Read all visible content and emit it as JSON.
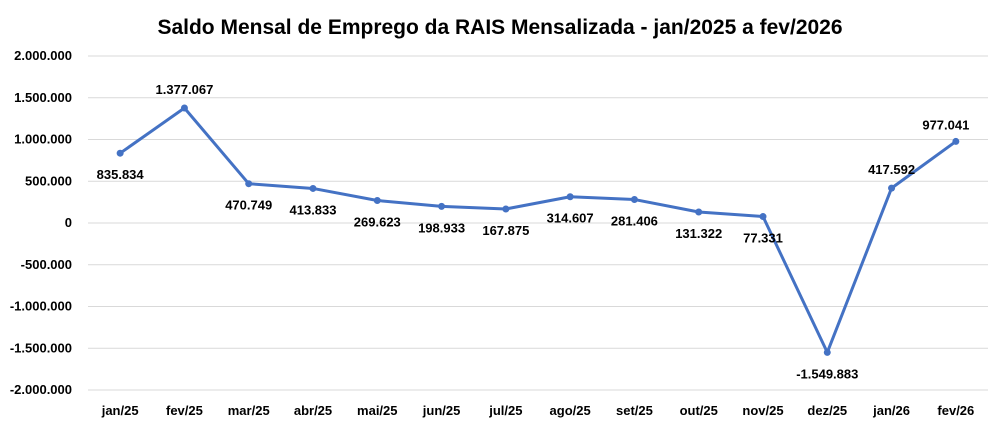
{
  "chart_data": {
    "type": "line",
    "title": "Saldo Mensal de Emprego da RAIS Mensalizada -  jan/2025 a fev/2026",
    "xlabel": "",
    "ylabel": "",
    "categories": [
      "jan/25",
      "fev/25",
      "mar/25",
      "abr/25",
      "mai/25",
      "jun/25",
      "jul/25",
      "ago/25",
      "set/25",
      "out/25",
      "nov/25",
      "dez/25",
      "jan/26",
      "fev/26"
    ],
    "series": [
      {
        "values": [
          835834,
          1377067,
          470749,
          413833,
          269623,
          198933,
          167875,
          314607,
          281406,
          131322,
          77331,
          -1549883,
          417592,
          977041
        ],
        "labels": [
          "835.834",
          "1.377.067",
          "470.749",
          "413.833",
          "269.623",
          "198.933",
          "167.875",
          "314.607",
          "281.406",
          "131.322",
          "77.331",
          "-1.549.883",
          "417.592",
          "977.041"
        ],
        "color": "#4472c4"
      }
    ],
    "ylim": [
      -2000000,
      2000000
    ],
    "yticks": [
      2000000,
      1500000,
      1000000,
      500000,
      0,
      -500000,
      -1000000,
      -1500000,
      -2000000
    ],
    "ytick_labels": [
      "2.000.000",
      "1.500.000",
      "1.000.000",
      "500.000",
      "0",
      "-500.000",
      "-1.000.000",
      "-1.500.000",
      "-2.000.000"
    ],
    "grid": true,
    "legend": "none"
  }
}
